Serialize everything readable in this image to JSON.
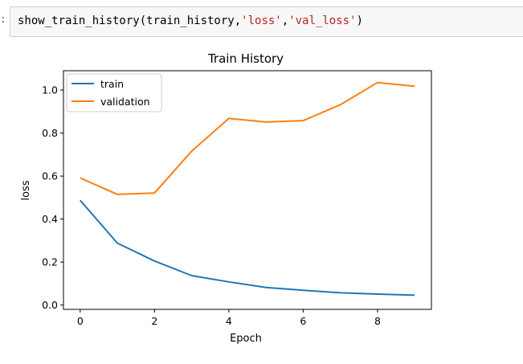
{
  "cell": {
    "prompt": ":",
    "code_fn": "show_train_history(train_history,",
    "code_arg1": "'loss'",
    "code_comma": ",",
    "code_arg2": "'val_loss'",
    "code_close": ")"
  },
  "chart_data": {
    "type": "line",
    "title": "Train History",
    "xlabel": "Epoch",
    "ylabel": "loss",
    "x": [
      0,
      1,
      2,
      3,
      4,
      5,
      6,
      7,
      8,
      9
    ],
    "xlim": [
      -0.45,
      9.45
    ],
    "ylim": [
      -0.02,
      1.09
    ],
    "xticks": [
      0,
      2,
      4,
      6,
      8
    ],
    "yticks": [
      0.0,
      0.2,
      0.4,
      0.6,
      0.8,
      1.0
    ],
    "ytick_labels": [
      "0.0",
      "0.2",
      "0.4",
      "0.6",
      "0.8",
      "1.0"
    ],
    "grid": false,
    "legend_position": "upper left",
    "series": [
      {
        "name": "train",
        "color": "#1f77b4",
        "values": [
          0.487,
          0.288,
          0.205,
          0.137,
          0.108,
          0.082,
          0.069,
          0.057,
          0.051,
          0.046
        ]
      },
      {
        "name": "validation",
        "color": "#ff7f0e",
        "values": [
          0.591,
          0.515,
          0.521,
          0.716,
          0.868,
          0.851,
          0.858,
          0.932,
          1.035,
          1.018
        ]
      }
    ]
  }
}
